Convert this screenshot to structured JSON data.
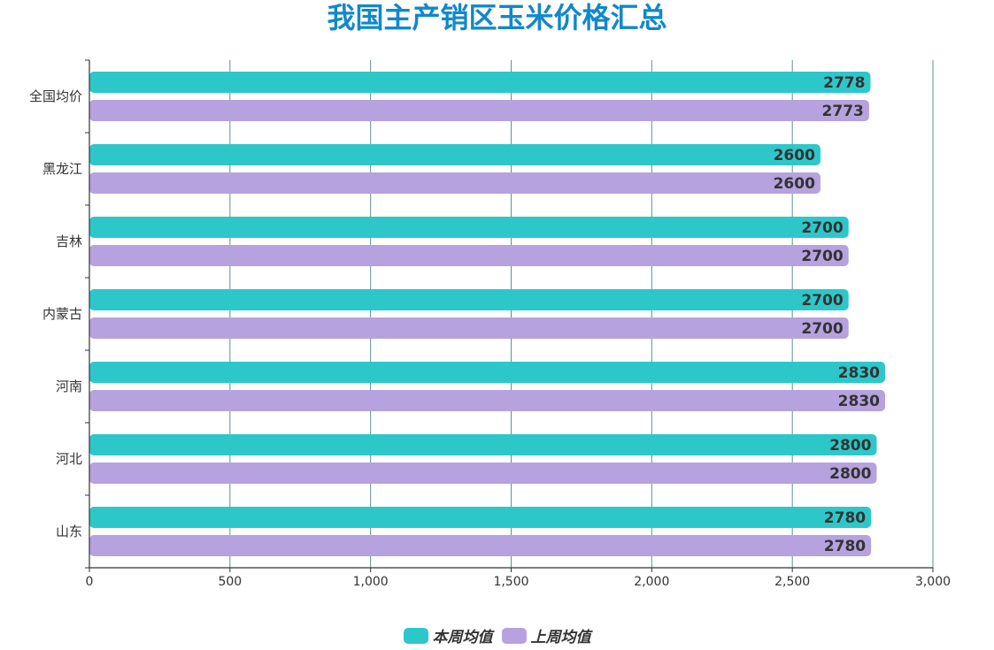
{
  "chart_data": {
    "type": "bar",
    "orientation": "horizontal",
    "title": "我国主产销区玉米价格汇总",
    "title_color": "#1188cc",
    "categories": [
      "全国均价",
      "黑龙江",
      "吉林",
      "内蒙古",
      "河南",
      "河北",
      "山东"
    ],
    "series": [
      {
        "name": "本周均值",
        "color": "#2ec7c9",
        "values": [
          2778,
          2600,
          2700,
          2700,
          2830,
          2800,
          2780
        ]
      },
      {
        "name": "上周均值",
        "color": "#b6a2de",
        "values": [
          2773,
          2600,
          2700,
          2700,
          2830,
          2800,
          2780
        ]
      }
    ],
    "xlim": [
      0,
      3000
    ],
    "xticks": [
      0,
      500,
      1000,
      1500,
      2000,
      2500,
      3000
    ],
    "xtick_labels": [
      "0",
      "500",
      "1,000",
      "1,500",
      "2,000",
      "2,500",
      "3,000"
    ],
    "grid": true,
    "grid_color": "#5f8f95",
    "data_labels": true,
    "legend_position": "bottom-center"
  }
}
